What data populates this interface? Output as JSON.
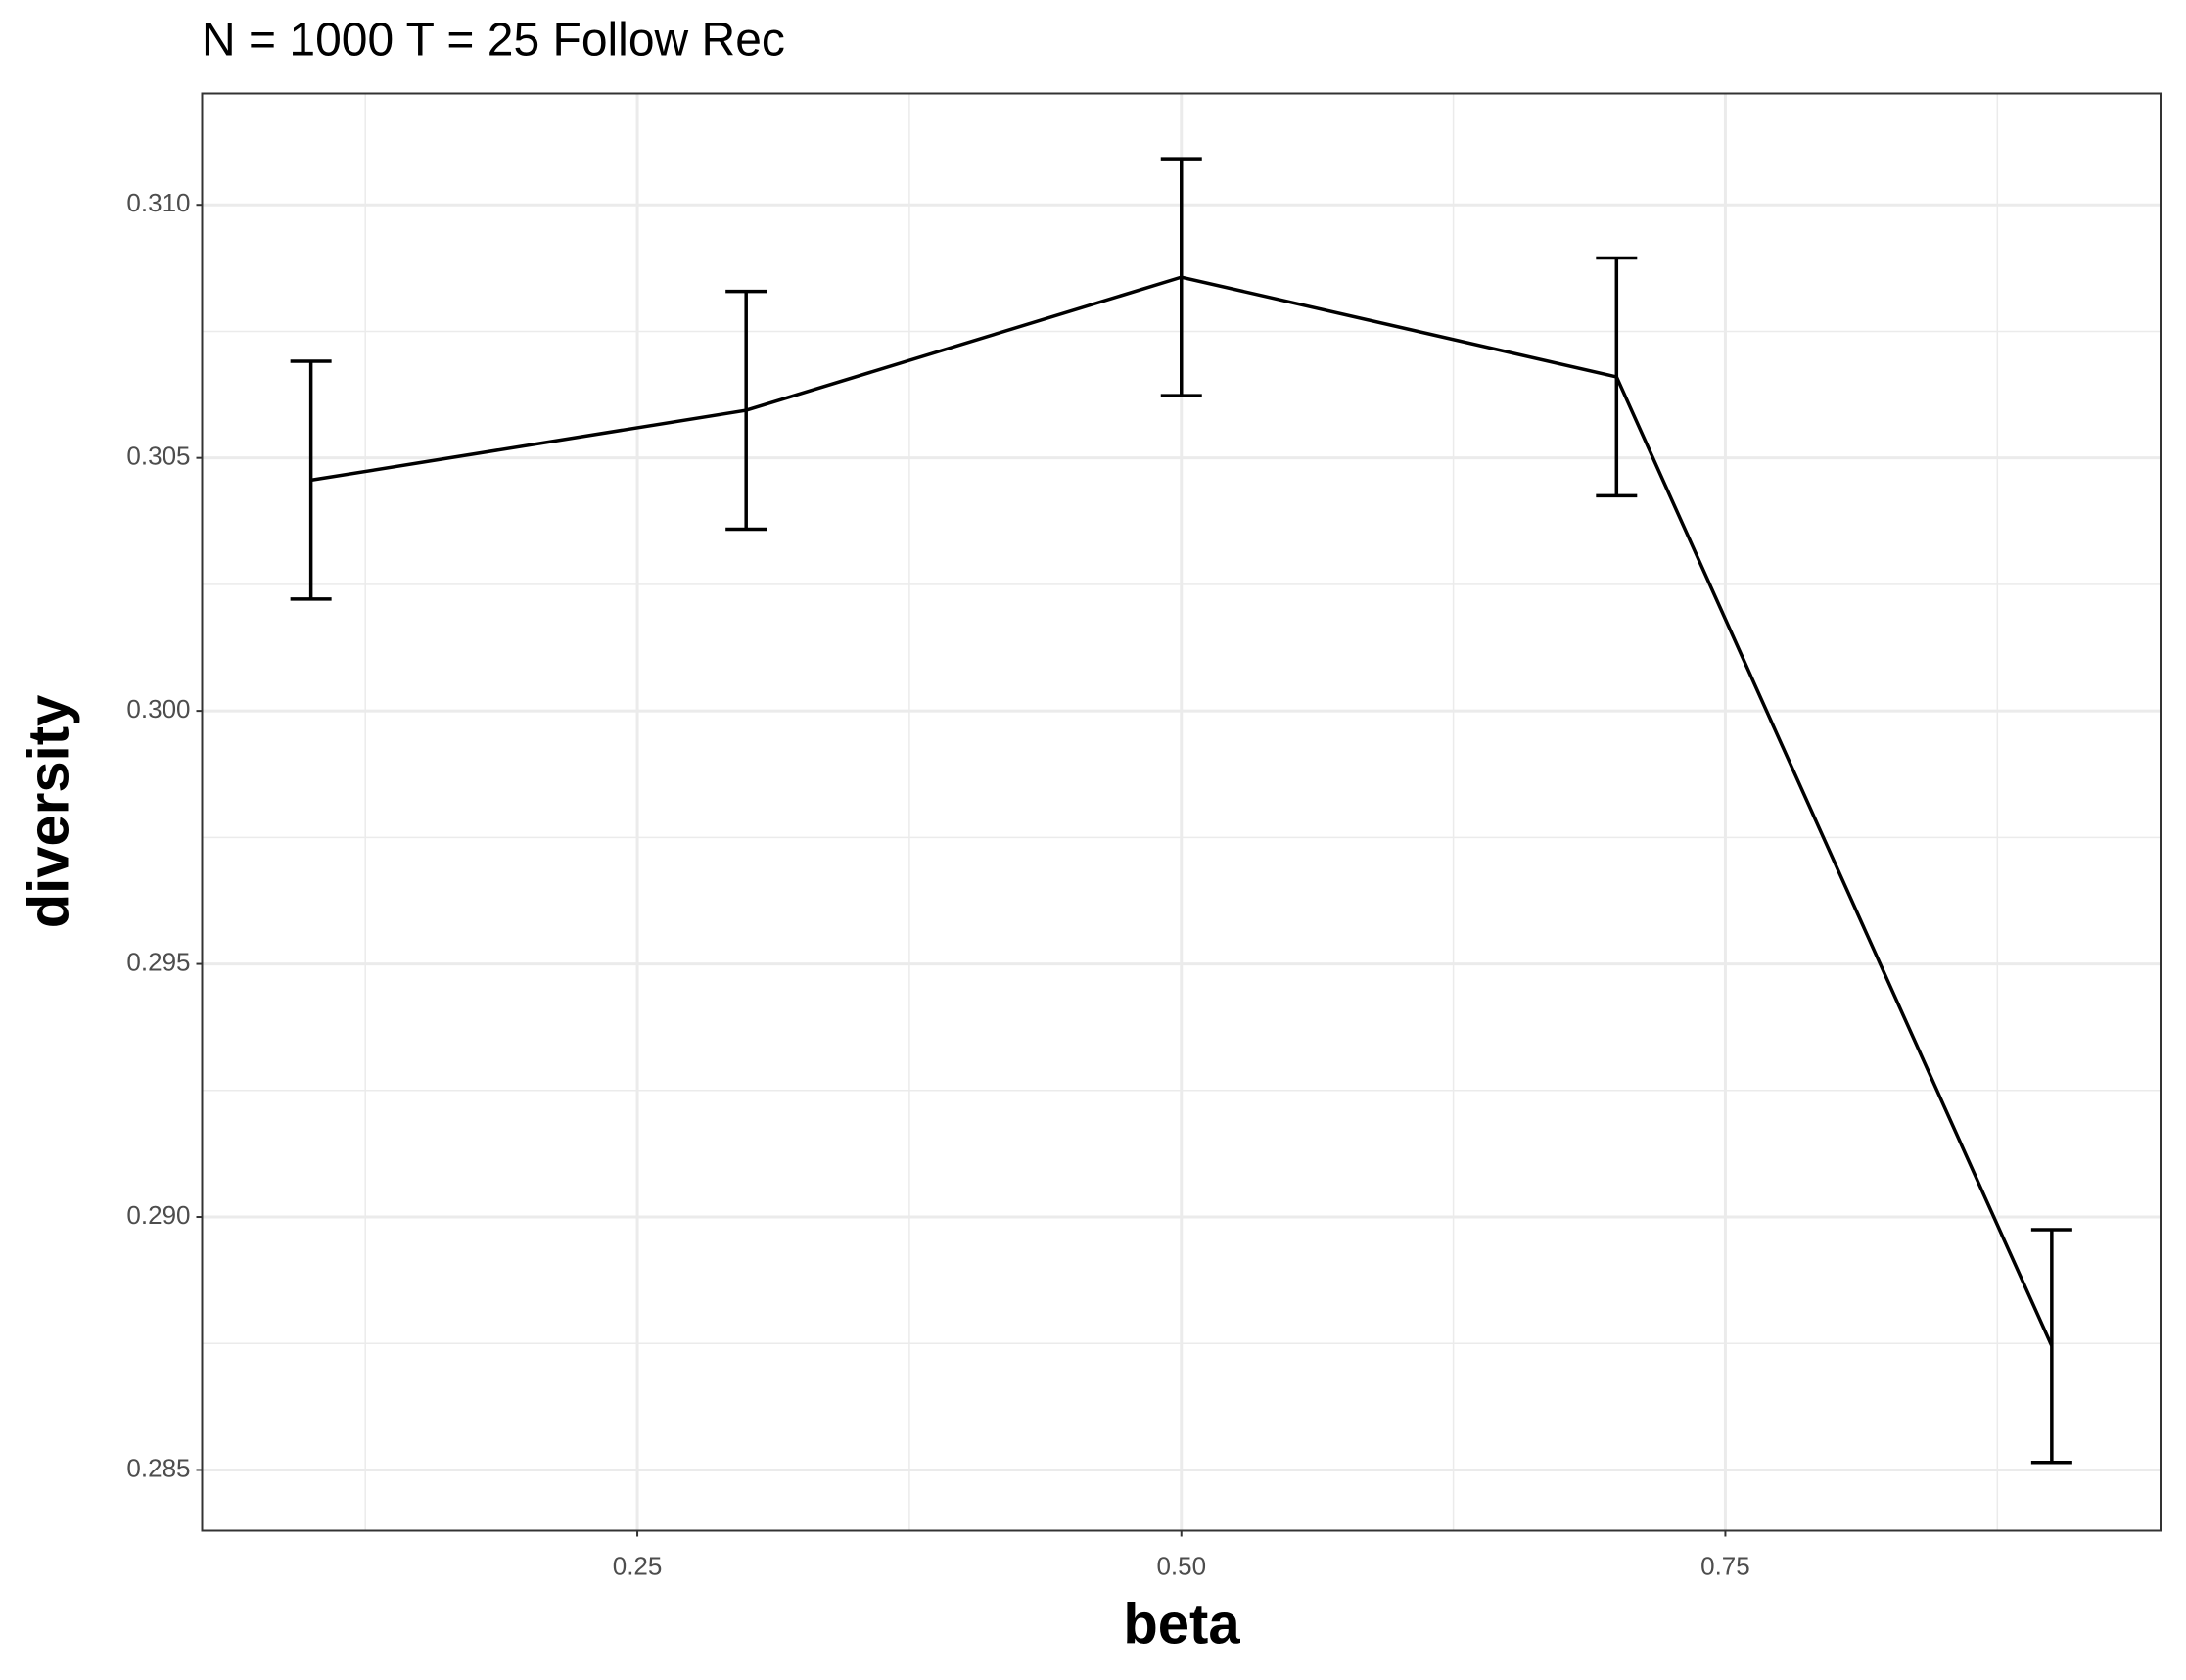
{
  "chart_data": {
    "type": "line",
    "title": "N = 1000 T = 25 Follow Rec",
    "x_label": "beta",
    "y_label": "diversity",
    "x": [
      0.1,
      0.3,
      0.5,
      0.7,
      0.9
    ],
    "series": [
      {
        "name": "diversity",
        "color": "#000000",
        "values": [
          0.30456,
          0.30594,
          0.30857,
          0.3066,
          0.28745
        ],
        "errors": [
          0.00235,
          0.00235,
          0.00234,
          0.00235,
          0.0023
        ]
      }
    ],
    "xlim": [
      0.05,
      0.95
    ],
    "ylim": [
      0.2838,
      0.3122
    ],
    "xticks": [
      {
        "value": 0.25,
        "label": "0.25"
      },
      {
        "value": 0.5,
        "label": "0.50"
      },
      {
        "value": 0.75,
        "label": "0.75"
      }
    ],
    "yticks": [
      {
        "value": 0.285,
        "label": "0.285"
      },
      {
        "value": 0.29,
        "label": "0.290"
      },
      {
        "value": 0.295,
        "label": "0.295"
      },
      {
        "value": 0.3,
        "label": "0.300"
      },
      {
        "value": 0.305,
        "label": "0.305"
      },
      {
        "value": 0.31,
        "label": "0.310"
      }
    ],
    "minor_xticks": [
      0.125,
      0.375,
      0.625,
      0.875
    ],
    "minor_yticks": [
      0.2875,
      0.2925,
      0.2975,
      0.3025,
      0.3075
    ],
    "grid": true
  }
}
